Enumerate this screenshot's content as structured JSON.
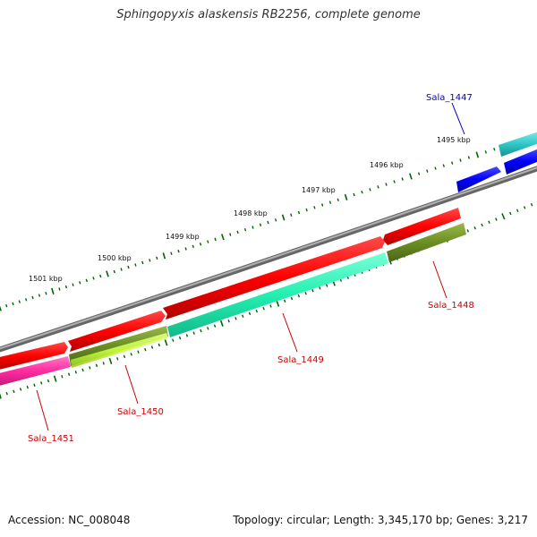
{
  "title": "Sphingopyxis alaskensis RB2256, complete genome",
  "footer": {
    "accession": "Accession: NC_008048",
    "summary": "Topology: circular; Length: 3,345,170 bp; Genes: 3,217"
  },
  "ruler": {
    "labels": [
      "1495 kbp",
      "1496 kbp",
      "1497 kbp",
      "1498 kbp",
      "1499 kbp",
      "1500 kbp",
      "1501 kbp"
    ]
  },
  "genes": {
    "sala_1447": "Sala_1447",
    "sala_1448": "Sala_1448",
    "sala_1449": "Sala_1449",
    "sala_1450": "Sala_1450",
    "sala_1451": "Sala_1451"
  },
  "colors": {
    "backbone": "#808080",
    "forward_gene": "#ff0000",
    "reverse_gene_1447": "#0000ff",
    "label_blue": "#0000cc",
    "label_red": "#cc0000",
    "tick": "#006400",
    "cyan": "#2ec8c8",
    "aqua": "#22f0b0",
    "olive": "#6b8e23",
    "lime": "#c8ff40",
    "magenta": "#ff2aa0"
  }
}
